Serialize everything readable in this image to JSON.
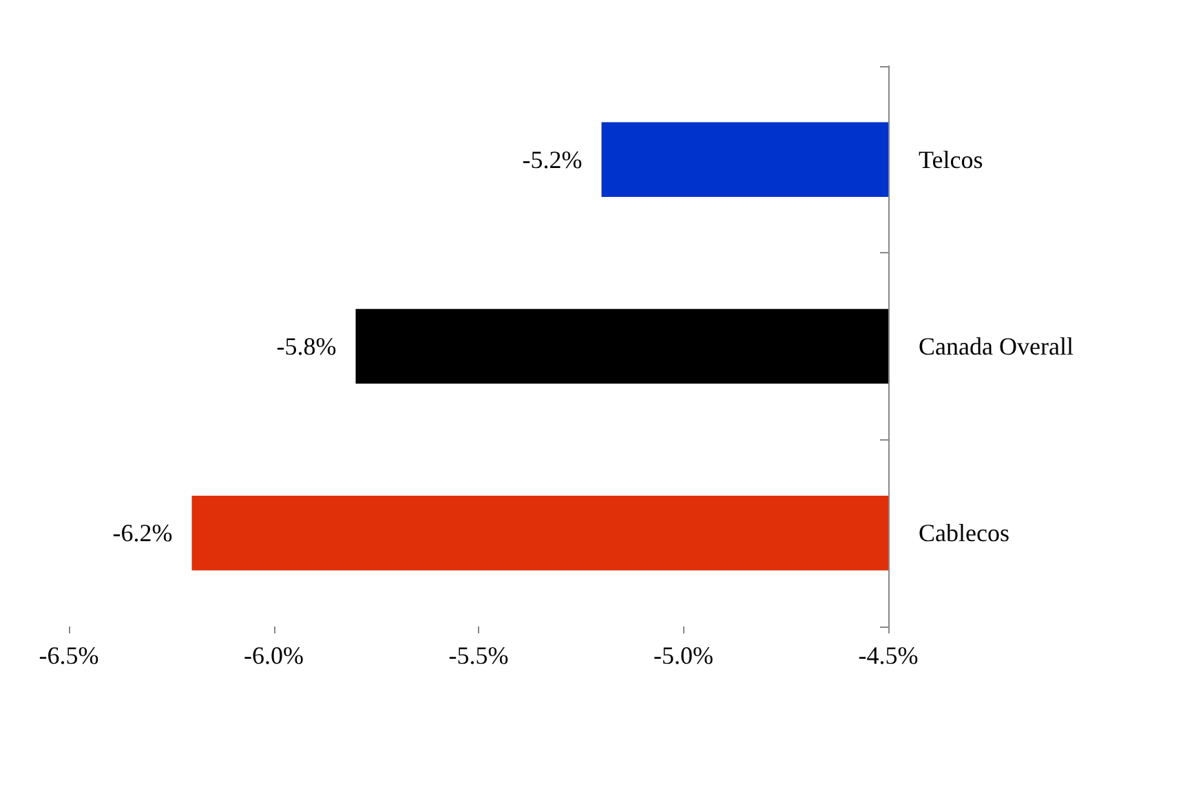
{
  "chart_data": {
    "type": "bar",
    "orientation": "horizontal",
    "categories": [
      "Telcos",
      "Canada Overall",
      "Cablecos"
    ],
    "values": [
      -5.2,
      -5.8,
      -6.2
    ],
    "colors": [
      "#0033cc",
      "#000000",
      "#e0300a"
    ],
    "value_labels": [
      "-5.2%",
      "-5.8%",
      "-6.2%"
    ],
    "xlim": [
      -6.5,
      -4.5
    ],
    "xticks": [
      {
        "value": -6.5,
        "label": "-6.5%"
      },
      {
        "value": -6.0,
        "label": "-6.0%"
      },
      {
        "value": -5.5,
        "label": "-5.5%"
      },
      {
        "value": -5.0,
        "label": "-5.0%"
      },
      {
        "value": -4.5,
        "label": "-4.5%"
      }
    ],
    "grid": false
  }
}
